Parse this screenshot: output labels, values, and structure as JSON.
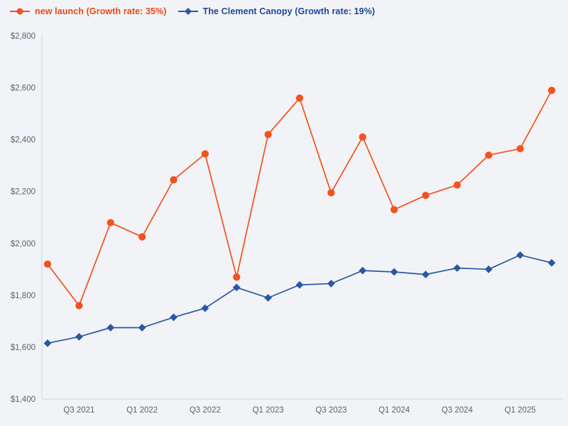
{
  "theme": {
    "background": "#f1f3f6",
    "axis_line": "#c9d3e8",
    "tick_text": "#5c6370"
  },
  "chart_data": {
    "type": "line",
    "title": "",
    "xlabel": "",
    "ylabel": "",
    "grid": false,
    "legend_position": "top-left",
    "ylim": [
      1400,
      2800
    ],
    "ytick_step": 200,
    "ytick_labels": [
      "$1,400",
      "$1,600",
      "$1,800",
      "$2,000",
      "$2,200",
      "$2,400",
      "$2,600",
      "$2,800"
    ],
    "categories": [
      "Q2 2021",
      "Q3 2021",
      "Q4 2021",
      "Q1 2022",
      "Q2 2022",
      "Q3 2022",
      "Q4 2022",
      "Q1 2023",
      "Q2 2023",
      "Q3 2023",
      "Q4 2023",
      "Q1 2024",
      "Q2 2024",
      "Q3 2024",
      "Q4 2024",
      "Q1 2025",
      "Q2 2025"
    ],
    "x_ticks": [
      {
        "index": 1,
        "label": "Q3 2021"
      },
      {
        "index": 3,
        "label": "Q1 2022"
      },
      {
        "index": 5,
        "label": "Q3 2022"
      },
      {
        "index": 7,
        "label": "Q1 2023"
      },
      {
        "index": 9,
        "label": "Q3 2023"
      },
      {
        "index": 11,
        "label": "Q1 2024"
      },
      {
        "index": 13,
        "label": "Q3 2024"
      },
      {
        "index": 15,
        "label": "Q1 2025"
      }
    ],
    "series": [
      {
        "name": "new launch (Growth rate: 35%)",
        "marker": "circle",
        "color": "#f4511e",
        "legend_text_color": "#e64a19",
        "values": [
          1920,
          1760,
          2080,
          2025,
          2245,
          2345,
          1870,
          2420,
          2560,
          2195,
          2410,
          2130,
          2185,
          2225,
          2340,
          2365,
          2590
        ]
      },
      {
        "name": "The Clement Canopy (Growth rate: 19%)",
        "marker": "diamond",
        "color": "#2b57a5",
        "legend_text_color": "#1f4795",
        "values": [
          1615,
          1640,
          1675,
          1675,
          1715,
          1750,
          1830,
          1790,
          1840,
          1845,
          1895,
          1890,
          1880,
          1905,
          1900,
          1955,
          1925
        ]
      }
    ]
  }
}
